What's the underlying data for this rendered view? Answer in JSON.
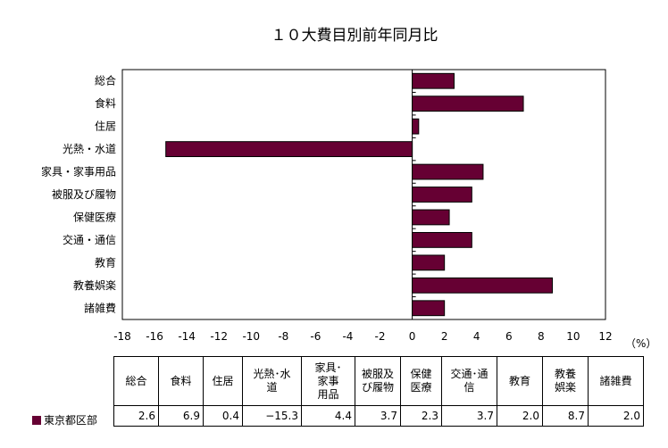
{
  "chart_data": {
    "type": "bar",
    "orientation": "horizontal",
    "title": "１０大費目別前年同月比",
    "unit_label": "（%）",
    "categories": [
      "総合",
      "食料",
      "住居",
      "光熱・水道",
      "家具・家事用品",
      "被服及び履物",
      "保健医療",
      "交通・通信",
      "教育",
      "教養娯楽",
      "諸雑費"
    ],
    "series": [
      {
        "name": "東京都区部",
        "color": "#660033",
        "values": [
          2.6,
          6.9,
          0.4,
          -15.3,
          4.4,
          3.7,
          2.3,
          3.7,
          2.0,
          8.7,
          2.0
        ]
      }
    ],
    "xlim": [
      -18,
      12
    ],
    "xticks": [
      -18,
      -16,
      -14,
      -12,
      -10,
      -8,
      -6,
      -4,
      -2,
      0,
      2,
      4,
      6,
      8,
      10,
      12
    ],
    "grid": false
  },
  "table": {
    "headers": [
      "総合",
      "食料",
      "住居",
      "光熱･水道",
      "家具･家事用品",
      "被服及び履物",
      "保健医療",
      "交通･通信",
      "教育",
      "教養娯楽",
      "諸雑費"
    ],
    "header_lines": [
      [
        "総合"
      ],
      [
        "食料"
      ],
      [
        "住居"
      ],
      [
        "光熱･水",
        "道"
      ],
      [
        "家具･",
        "家事",
        "用品"
      ],
      [
        "被服及",
        "び履物"
      ],
      [
        "保健",
        "医療"
      ],
      [
        "交通･通",
        "信"
      ],
      [
        "教育"
      ],
      [
        "教養",
        "娯楽"
      ],
      [
        "諸雑費"
      ]
    ],
    "row_label": "東京都区部",
    "values": [
      "2.6",
      "6.9",
      "0.4",
      "−15.3",
      "4.4",
      "3.7",
      "2.3",
      "3.7",
      "2.0",
      "8.7",
      "2.0"
    ]
  }
}
